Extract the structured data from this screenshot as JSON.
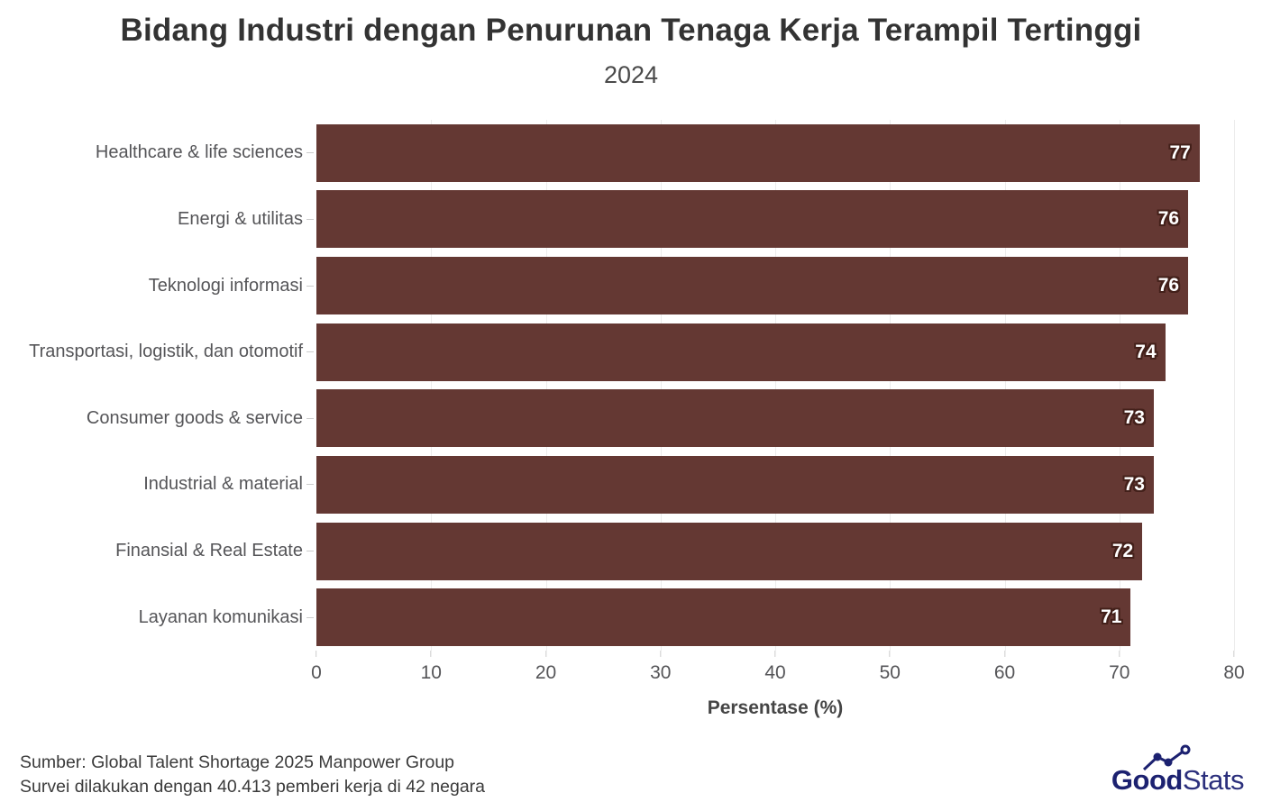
{
  "header": {
    "title": "Bidang Industri dengan Penurunan Tenaga Kerja Terampil Tertinggi",
    "subtitle": "2024"
  },
  "chart_data": {
    "type": "bar",
    "orientation": "horizontal",
    "title": "Bidang Industri dengan Penurunan Tenaga Kerja Terampil Tertinggi",
    "subtitle": "2024",
    "categories": [
      "Healthcare & life sciences",
      "Energi & utilitas",
      "Teknologi informasi",
      "Transportasi, logistik, dan otomotif",
      "Consumer goods & service",
      "Industrial & material",
      "Finansial & Real Estate",
      "Layanan komunikasi"
    ],
    "values": [
      77,
      76,
      76,
      74,
      73,
      73,
      72,
      71
    ],
    "xlabel": "Persentase (%)",
    "ylabel": "",
    "xlim": [
      0,
      80
    ],
    "xticks": [
      0,
      10,
      20,
      30,
      40,
      50,
      60,
      70,
      80
    ],
    "grid": "vertical-gridlines-on",
    "legend": "none",
    "bar_color": "#643833",
    "value_label_color": "#ffffff",
    "value_label_outline_color": "#43201a",
    "gridline_color": "#ececec"
  },
  "footer": {
    "source_line1": "Sumber: Global Talent Shortage 2025 Manpower Group",
    "source_line2": "Survei dilakukan dengan 40.413 pemberi kerja di 42 negara",
    "logo": {
      "part1": "Good",
      "part2": "Stats",
      "color": "#1c2170"
    }
  }
}
